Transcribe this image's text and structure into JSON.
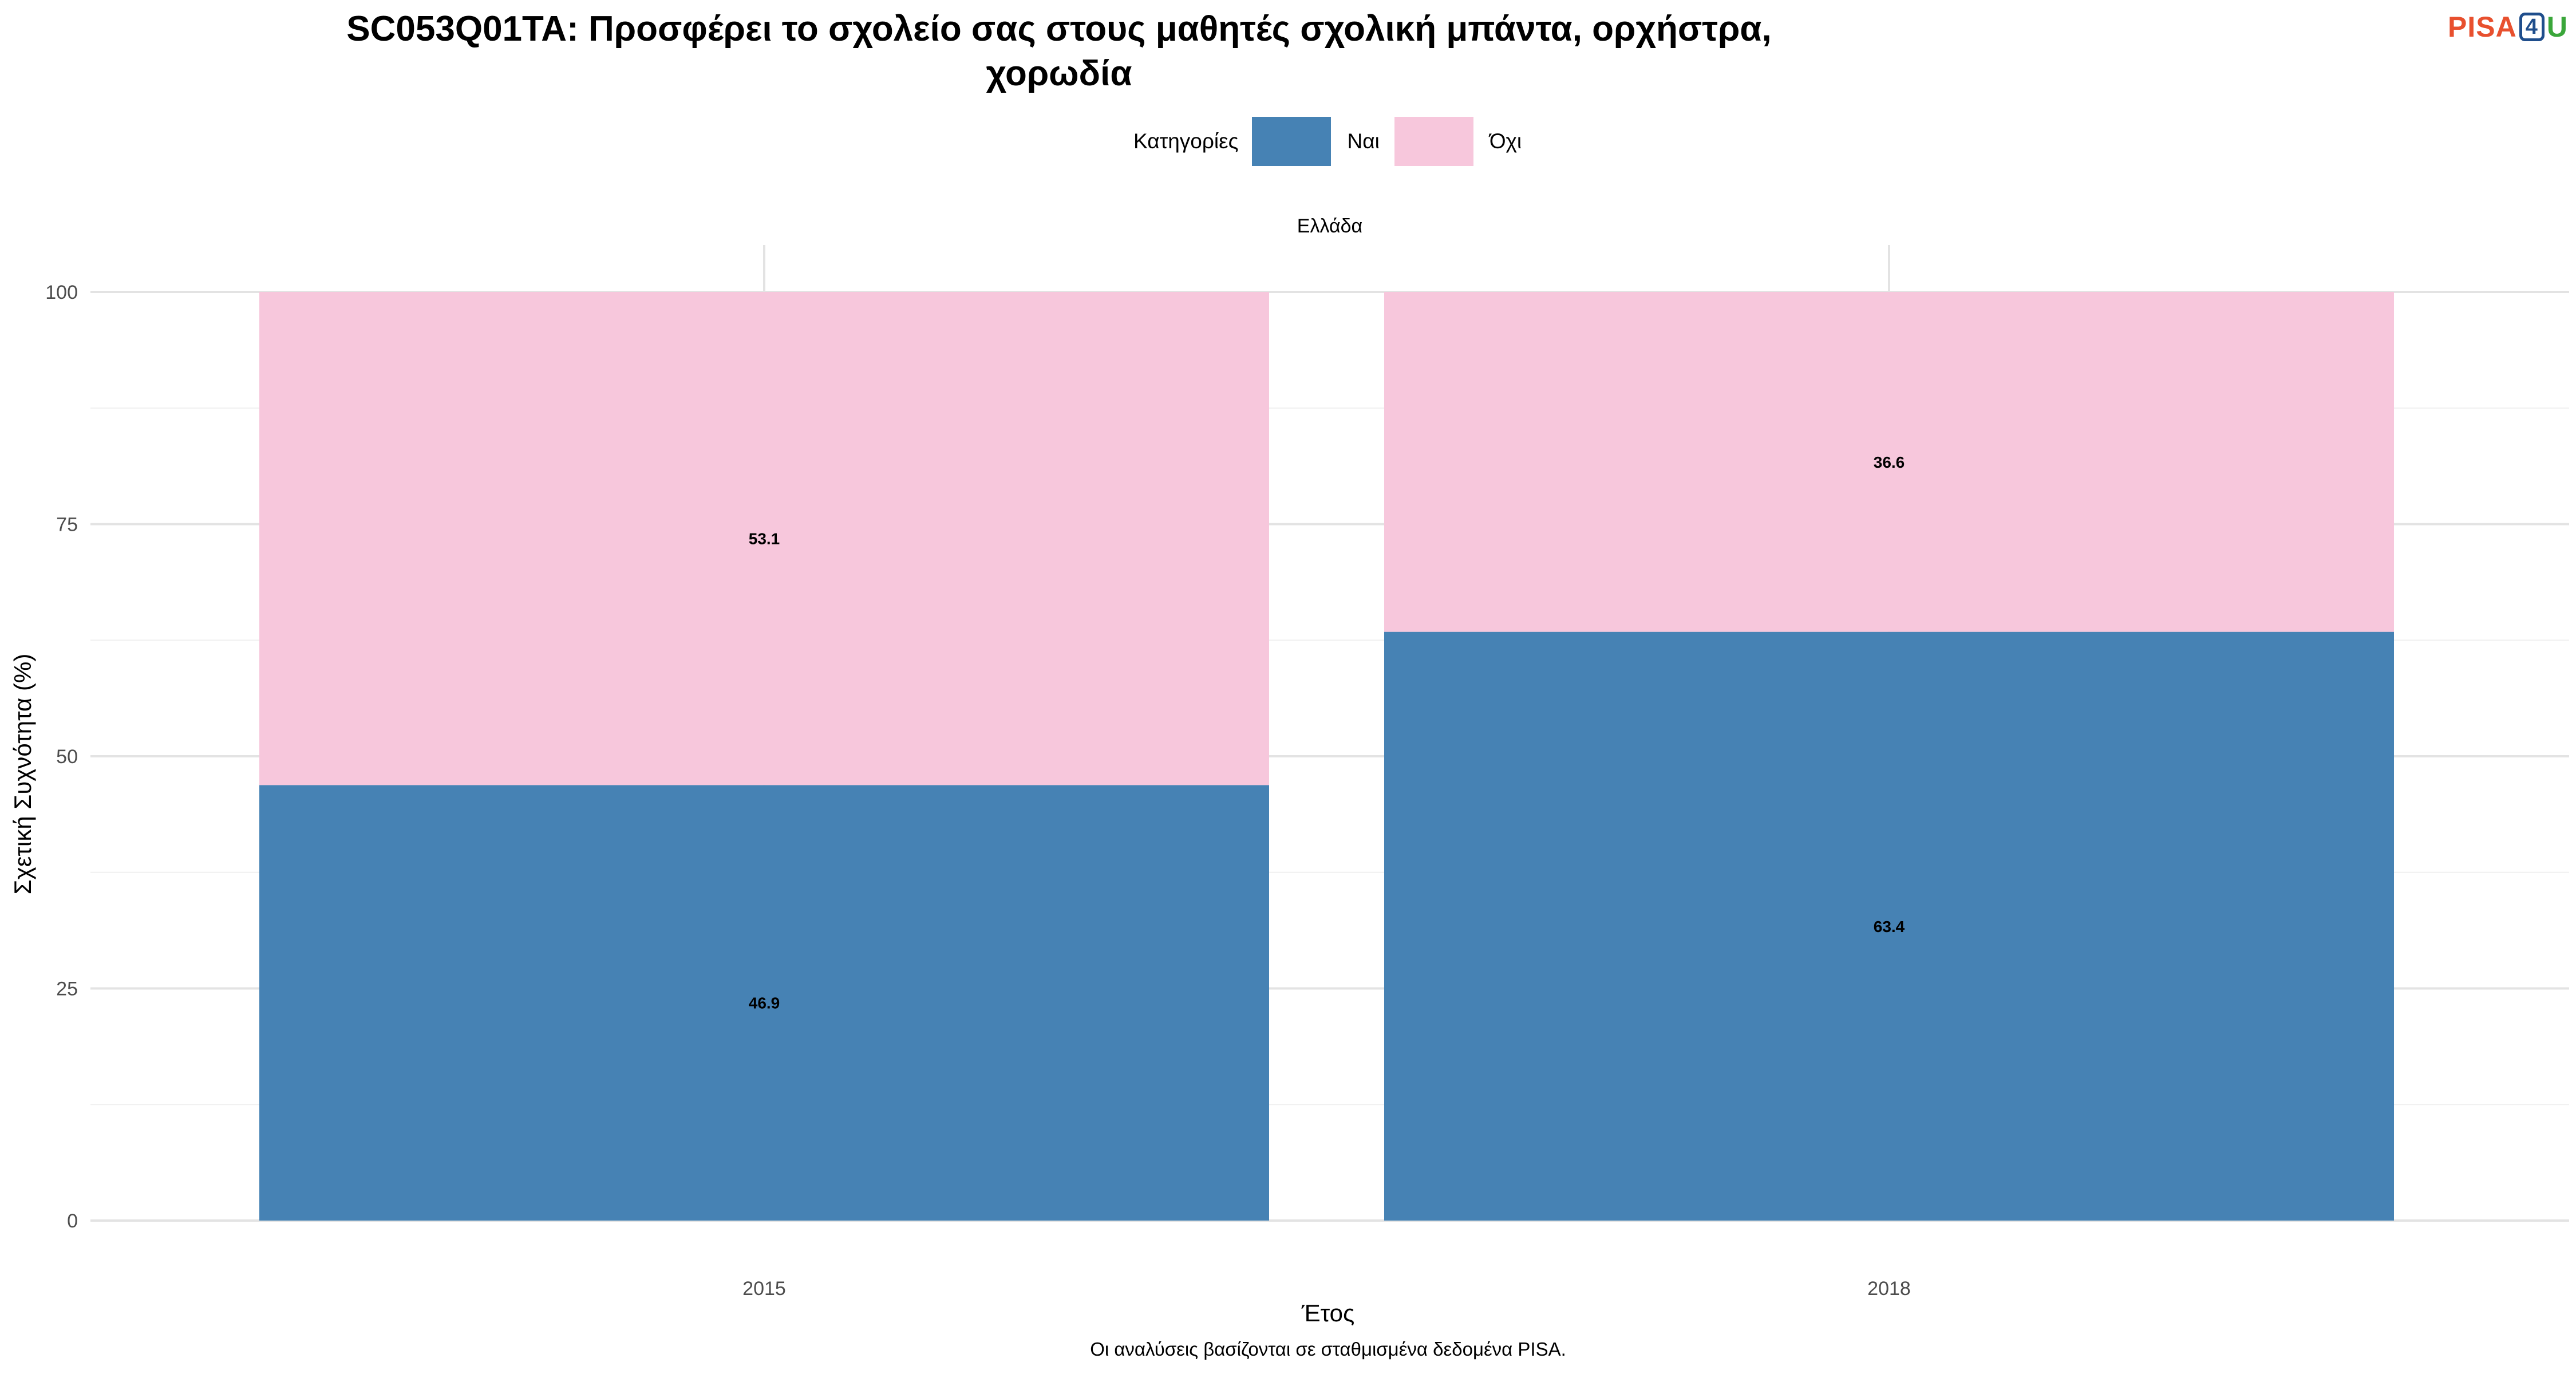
{
  "chart_data": {
    "type": "bar",
    "stacked": true,
    "title": "SC053Q01TA: Προσφέρει το σχολείο σας στους μαθητές σχολική μπάντα, ορχήστρα, χορωδία",
    "facet": "Ελλάδα",
    "xlabel": "Έτος",
    "ylabel": "Σχετική Συχνότητα (%)",
    "categories": [
      "2015",
      "2018"
    ],
    "series": [
      {
        "name": "Ναι",
        "color": "#4682b4",
        "values": [
          46.9,
          63.4
        ]
      },
      {
        "name": "Όχι",
        "color": "#f7c7dc",
        "values": [
          53.1,
          36.6
        ]
      }
    ],
    "ylim": [
      0,
      100
    ],
    "yticks": [
      0,
      25,
      50,
      75,
      100
    ],
    "legend_title": "Κατηγορίες",
    "legend_position": "top",
    "grid": true,
    "caption": "Οι αναλύσεις βασίζονται σε σταθμισμένα δεδομένα PISA."
  },
  "logo": {
    "part1": "PISA",
    "part2": "4",
    "part3": "U"
  }
}
